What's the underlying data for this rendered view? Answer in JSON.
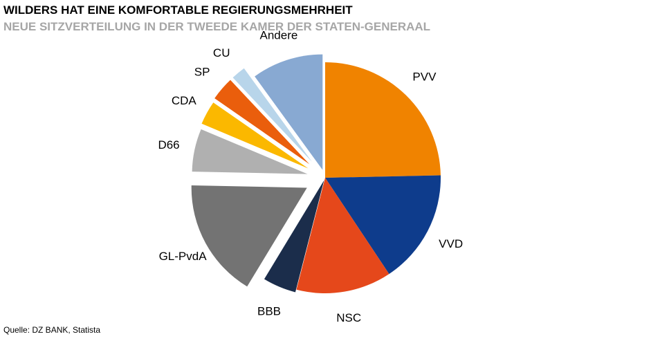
{
  "header": {
    "title": "WILDERS HAT EINE KOMFORTABLE REGIERUNGSMEHRHEIT",
    "subtitle": "NEUE SITZVERTEILUNG IN DER TWEEDE KAMER DER STATEN-GENERAAL"
  },
  "footer": {
    "source": "Quelle: DZ BANK, Statista"
  },
  "chart_data": {
    "type": "pie",
    "title": "WILDERS HAT EINE KOMFORTABLE REGIERUNGSMEHRHEIT",
    "subtitle": "NEUE SITZVERTEILUNG IN DER TWEEDE KAMER DER STATEN-GENERAAL",
    "exploded": true,
    "legend": "none",
    "categories": [
      "PVV",
      "VVD",
      "NSC",
      "BBB",
      "GL-PvdA",
      "D66",
      "CDA",
      "SP",
      "CU",
      "Andere"
    ],
    "values": [
      37,
      24,
      20,
      7,
      25,
      9,
      5,
      5,
      3,
      15
    ],
    "colors": [
      "#f08300",
      "#0e3c8c",
      "#e5481b",
      "#1b2d4b",
      "#737373",
      "#b0b0b0",
      "#fbb800",
      "#ea5e0c",
      "#b8d5ea",
      "#88a9d2"
    ]
  }
}
